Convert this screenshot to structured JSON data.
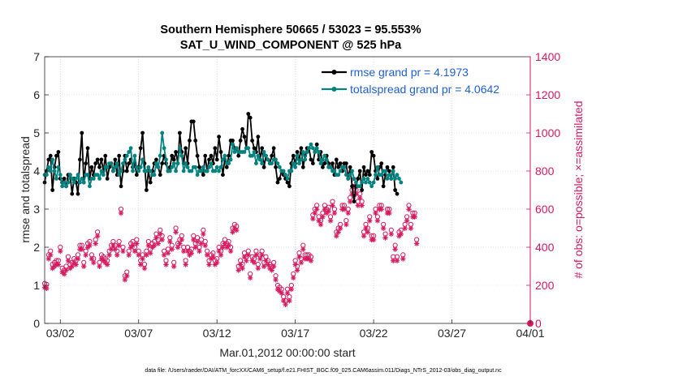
{
  "chart_data": {
    "type": "line",
    "title": "Southern Hemisphere 50665 / 53023 = 95.553%",
    "subtitle": "SAT_U_WIND_COMPONENT @ 525 hPa",
    "xlabel": "Mar.01,2012 00:00:00 start",
    "ylabel_left": "rmse and totalspread",
    "ylabel_right": "# of obs: o=possible; ×=assimilated",
    "footer": "data file: /Users/raeder/DAI/ATM_forcXX/CAM6_setup/f.e21.FHIST_BGC.f09_025.CAM6assim.011/Diags_NTrS_2012-03/obs_diag_output.nc",
    "xlim": [
      0.5,
      31.5
    ],
    "ylim_left": [
      0,
      7
    ],
    "ylim_right": [
      0,
      1400
    ],
    "x_ticks": [
      {
        "value": 1.5,
        "label": "03/02"
      },
      {
        "value": 6.5,
        "label": "03/07"
      },
      {
        "value": 11.5,
        "label": "03/12"
      },
      {
        "value": 16.5,
        "label": "03/17"
      },
      {
        "value": 21.5,
        "label": "03/22"
      },
      {
        "value": 26.5,
        "label": "03/27"
      },
      {
        "value": 31.5,
        "label": "04/01"
      }
    ],
    "y_ticks_left": [
      "0",
      "1",
      "2",
      "3",
      "4",
      "5",
      "6",
      "7"
    ],
    "y_ticks_right": [
      "0",
      "200",
      "400",
      "600",
      "800",
      "1000",
      "1200",
      "1400"
    ],
    "legend_position": "top-right",
    "colors": {
      "rmse": "#000000",
      "totalspread": "#00827f",
      "obs": "#d6195f",
      "legend_text": "#1f5fd6",
      "right_axis": "#d6195f"
    },
    "x_start": 0.5,
    "x_step": 0.125,
    "series": [
      {
        "name": "rmse grand pr = 4.1973",
        "axis": "left",
        "values": [
          3.7,
          4.0,
          4.3,
          4.4,
          3.5,
          4.1,
          4.4,
          4.5,
          3.8,
          3.7,
          3.8,
          3.6,
          3.9,
          3.9,
          3.4,
          3.8,
          3.7,
          3.4,
          4.3,
          5.0,
          3.7,
          4.2,
          4.6,
          3.8,
          4.1,
          3.9,
          4.2,
          4.3,
          4.1,
          4.3,
          4.0,
          4.4,
          3.8,
          4.1,
          4.2,
          4.0,
          4.3,
          3.9,
          4.4,
          3.6,
          4.0,
          4.4,
          4.0,
          4.2,
          4.3,
          4.1,
          4.2,
          3.9,
          4.1,
          4.6,
          5.0,
          4.2,
          3.5,
          4.0,
          3.7,
          4.0,
          4.2,
          4.3,
          4.1,
          3.9,
          4.2,
          4.4,
          4.2,
          4.0,
          4.1,
          4.4,
          4.3,
          4.5,
          4.2,
          5.0,
          4.5,
          4.2,
          4.6,
          4.2,
          4.8,
          5.3,
          5.3,
          4.8,
          4.4,
          4.1,
          4.0,
          3.9,
          4.4,
          4.0,
          4.3,
          4.4,
          4.2,
          4.6,
          4.3,
          4.9,
          4.5,
          3.9,
          4.3,
          4.1,
          4.4,
          4.8,
          4.8,
          4.6,
          4.6,
          4.4,
          4.8,
          5.1,
          4.9,
          4.6,
          5.5,
          5.4,
          4.8,
          4.6,
          4.5,
          4.9,
          4.3,
          4.6,
          4.1,
          4.4,
          4.3,
          4.2,
          4.4,
          4.6,
          4.1,
          3.7,
          3.8,
          4.0,
          3.9,
          3.8,
          3.7,
          3.6,
          4.2,
          4.4,
          4.2,
          4.5,
          4.3,
          4.6,
          4.1,
          4.4,
          4.6,
          4.6,
          4.3,
          4.2,
          4.5,
          4.7,
          4.3,
          4.5,
          4.1,
          4.2,
          4.4,
          4.2,
          4.1,
          4.2,
          3.9,
          4.3,
          4.1,
          4.2,
          4.0,
          4.2,
          4.2,
          3.8,
          4.1,
          3.6,
          3.2,
          3.6,
          3.8,
          4.0,
          3.5,
          4.1,
          3.9,
          4.0,
          3.9,
          4.5,
          4.4,
          4.0,
          3.8,
          4.1,
          4.2,
          3.6,
          3.9,
          4.1,
          4.0,
          3.8,
          4.1,
          3.5,
          3.4
        ]
      },
      {
        "name": "totalspread grand pr = 4.0642",
        "axis": "left",
        "values": [
          3.9,
          3.9,
          4.1,
          4.0,
          4.3,
          4.0,
          3.8,
          4.1,
          3.9,
          3.6,
          3.7,
          3.6,
          3.7,
          3.9,
          3.8,
          3.7,
          3.8,
          3.9,
          3.7,
          3.8,
          3.7,
          3.9,
          3.9,
          3.6,
          3.8,
          3.8,
          3.9,
          3.9,
          3.8,
          4.0,
          3.9,
          4.1,
          4.1,
          4.2,
          4.2,
          4.0,
          4.1,
          4.2,
          3.9,
          4.0,
          4.2,
          4.3,
          4.4,
          4.5,
          4.6,
          4.0,
          4.4,
          4.1,
          4.0,
          4.1,
          4.3,
          4.0,
          4.0,
          4.1,
          4.0,
          3.9,
          3.9,
          4.2,
          4.1,
          4.4,
          5.0,
          4.6,
          4.3,
          4.0,
          4.0,
          4.1,
          4.2,
          4.0,
          4.2,
          4.6,
          4.4,
          4.0,
          4.2,
          4.1,
          4.0,
          4.0,
          4.1,
          4.1,
          3.9,
          4.0,
          4.0,
          4.1,
          4.0,
          4.0,
          4.1,
          4.2,
          4.0,
          4.0,
          4.1,
          4.0,
          4.1,
          4.3,
          4.4,
          4.2,
          4.2,
          4.3,
          4.7,
          4.5,
          4.6,
          4.5,
          4.5,
          4.5,
          4.5,
          4.6,
          4.6,
          4.4,
          4.4,
          4.5,
          4.2,
          4.4,
          4.3,
          4.2,
          4.5,
          4.4,
          4.3,
          4.2,
          4.2,
          4.3,
          4.3,
          4.2,
          4.1,
          4.0,
          4.0,
          3.9,
          3.8,
          4.0,
          4.0,
          4.2,
          4.1,
          4.4,
          4.2,
          4.3,
          4.5,
          4.3,
          4.5,
          4.6,
          4.7,
          4.6,
          4.5,
          4.6,
          4.5,
          4.2,
          4.3,
          4.4,
          4.3,
          4.1,
          4.1,
          4.0,
          4.0,
          3.9,
          3.9,
          4.0,
          4.1,
          4.1,
          3.9,
          3.8,
          3.9,
          4.0,
          3.8,
          3.7,
          3.6,
          3.6,
          3.7,
          3.8,
          3.7,
          3.8,
          3.7,
          3.6,
          3.7,
          3.9,
          4.1,
          3.9,
          3.9,
          4.0,
          4.0,
          3.8,
          3.9,
          3.8,
          4.0,
          3.8,
          3.9,
          3.8,
          3.7
        ]
      }
    ],
    "obs_possible": [
      210,
      205,
      360,
      380,
      310,
      320,
      330,
      330,
      400,
      290,
      280,
      300,
      350,
      310,
      320,
      340,
      330,
      360,
      410,
      410,
      320,
      380,
      420,
      430,
      360,
      340,
      440,
      480,
      320,
      360,
      350,
      340,
      330,
      380,
      410,
      430,
      410,
      380,
      430,
      600,
      400,
      250,
      270,
      380,
      420,
      430,
      400,
      440,
      380,
      330,
      360,
      310,
      380,
      430,
      390,
      420,
      430,
      470,
      440,
      490,
      460,
      380,
      330,
      390,
      450,
      410,
      320,
      500,
      420,
      440,
      460,
      400,
      330,
      400,
      380,
      390,
      460,
      420,
      450,
      400,
      440,
      490,
      430,
      380,
      330,
      360,
      370,
      330,
      340,
      400,
      380,
      420,
      440,
      420,
      430,
      400,
      500,
      520,
      510,
      300,
      330,
      310,
      370,
      350,
      380,
      260,
      350,
      340,
      380,
      310,
      360,
      380,
      320,
      350,
      330,
      310,
      300,
      320,
      250,
      200,
      190,
      180,
      140,
      120,
      180,
      140,
      200,
      260,
      330,
      300,
      370,
      340,
      410,
      360,
      360,
      360,
      350,
      570,
      600,
      620,
      560,
      540,
      580,
      620,
      600,
      610,
      560,
      640,
      600,
      480,
      500,
      520,
      620,
      620,
      540,
      600,
      660,
      700,
      740,
      700,
      640,
      680,
      640,
      480,
      520,
      500,
      560,
      460,
      460,
      600,
      560,
      620,
      620,
      520,
      470,
      600,
      600,
      490,
      350,
      410,
      350,
      480,
      490,
      360,
      520,
      560,
      620,
      520,
      580,
      580,
      440
    ]
  }
}
